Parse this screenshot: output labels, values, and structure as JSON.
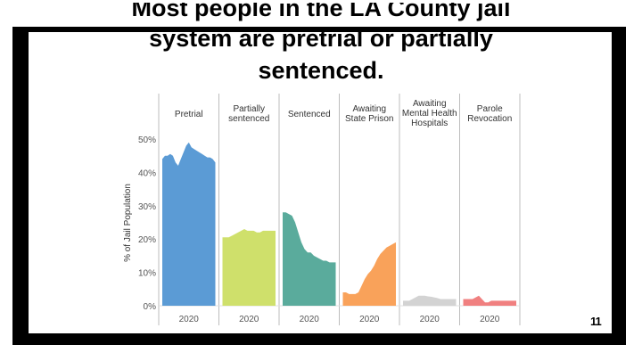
{
  "slide": {
    "title_line1": "Most people in the LA County jail",
    "title_line2": "system are pretrial or partially",
    "title_line3": "sentenced.",
    "page_number": "11"
  },
  "colors": {
    "frame": "#000000",
    "pretrial": "#5b9bd5",
    "partially_sentenced": "#cfe06b",
    "sentenced": "#5aab9c",
    "awaiting_state_prison": "#f9a25a",
    "awaiting_mental_health": "#d3d3d3",
    "parole_revocation": "#f08080"
  },
  "chart_data": {
    "type": "area",
    "title": "",
    "ylabel": "% of Jail Population",
    "xlabel": "",
    "ylim": [
      0,
      50
    ],
    "yticks": [
      0,
      10,
      20,
      30,
      40,
      50
    ],
    "ytick_labels": [
      "0%",
      "10%",
      "20%",
      "30%",
      "40%",
      "50%"
    ],
    "panels": [
      {
        "name": "Pretrial",
        "label_lines": [
          "Pretrial"
        ],
        "xlabel": "2020",
        "color_key": "pretrial",
        "values": [
          44,
          45,
          45,
          45.5,
          45,
          43,
          42,
          44,
          46,
          48,
          49,
          47.5,
          47,
          46.5,
          46,
          45.5,
          45,
          44.5,
          44.5,
          44,
          43
        ]
      },
      {
        "name": "Partially sentenced",
        "label_lines": [
          "Partially",
          "sentenced"
        ],
        "xlabel": "2020",
        "color_key": "partially_sentenced",
        "values": [
          20.5,
          20.5,
          20.5,
          21,
          21.5,
          22,
          22.5,
          23,
          22.5,
          22.5,
          22.5,
          22,
          22,
          22.5,
          22.5,
          22.5,
          22.5,
          22.5
        ]
      },
      {
        "name": "Sentenced",
        "label_lines": [
          "Sentenced"
        ],
        "xlabel": "2020",
        "color_key": "sentenced",
        "values": [
          28,
          28,
          27.5,
          27,
          25,
          22,
          19,
          17,
          16,
          16,
          15,
          14.5,
          14,
          13.5,
          13.5,
          13,
          13,
          13
        ]
      },
      {
        "name": "Awaiting State Prison",
        "label_lines": [
          "Awaiting",
          "State Prison"
        ],
        "xlabel": "2020",
        "color_key": "awaiting_state_prison",
        "values": [
          4,
          4,
          3.5,
          3.5,
          3.5,
          4,
          6,
          8,
          9.5,
          10.5,
          12,
          14,
          15.5,
          16.5,
          17.5,
          18,
          18.5,
          19
        ]
      },
      {
        "name": "Awaiting Mental Health Hospitals",
        "label_lines": [
          "Awaiting",
          "Mental Health",
          "Hospitals"
        ],
        "xlabel": "2020",
        "color_key": "awaiting_mental_health",
        "values": [
          1.5,
          1.5,
          1.5,
          2,
          2.5,
          3,
          3,
          3,
          2.8,
          2.7,
          2.5,
          2.3,
          2,
          2,
          2,
          2,
          2,
          2
        ]
      },
      {
        "name": "Parole Revocation",
        "label_lines": [
          "Parole",
          "Revocation"
        ],
        "xlabel": "2020",
        "color_key": "parole_revocation",
        "values": [
          2,
          2,
          2,
          2,
          2.5,
          3,
          2,
          1,
          1,
          1.5,
          1.5,
          1.5,
          1.5,
          1.5,
          1.5,
          1.5,
          1.5,
          1.5
        ]
      }
    ]
  }
}
